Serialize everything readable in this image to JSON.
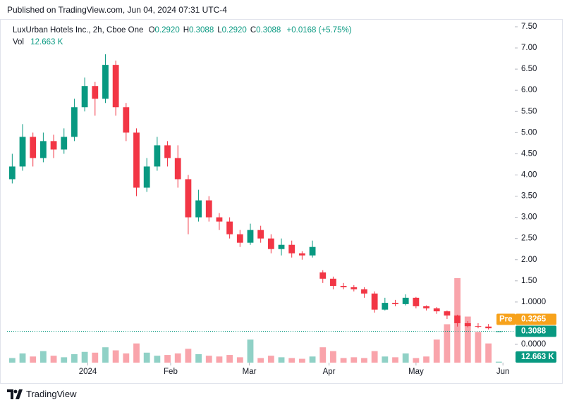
{
  "header": {
    "published": "Published on TradingView.com, Jun 04, 2024 07:31 UTC-4"
  },
  "chart_data": {
    "type": "candlestick",
    "title": "LuxUrban Hotels Inc., 2h, Cboe One",
    "ohlc_legend": [
      {
        "key": "O",
        "value": "0.2920"
      },
      {
        "key": "H",
        "value": "0.3088"
      },
      {
        "key": "L",
        "value": "0.2920"
      },
      {
        "key": "C",
        "value": "0.3088"
      }
    ],
    "change": "+0.0168 (+5.75%)",
    "volume_legend": {
      "label": "Vol",
      "value": "12.663 K"
    },
    "up_color": "#089981",
    "down_color": "#f23645",
    "open": [
      3.9,
      4.2,
      4.9,
      4.4,
      4.8,
      4.6,
      4.9,
      5.6,
      6.1,
      5.8,
      6.6,
      5.6,
      5.0,
      3.7,
      4.2,
      4.7,
      4.4,
      3.9,
      3.0,
      3.4,
      3.0,
      2.9,
      2.6,
      2.4,
      2.7,
      2.5,
      2.25,
      2.35,
      2.15,
      2.1,
      1.7,
      1.55,
      1.38,
      1.35,
      1.3,
      1.2,
      0.82,
      0.98,
      0.95,
      1.1,
      0.9,
      0.85,
      0.78,
      0.68,
      0.5,
      0.43,
      0.42,
      0.292
    ],
    "high": [
      4.5,
      5.2,
      5.0,
      5.0,
      4.95,
      5.1,
      5.8,
      6.3,
      6.2,
      6.85,
      6.7,
      5.7,
      5.1,
      4.4,
      4.9,
      4.8,
      4.7,
      4.0,
      3.65,
      3.5,
      3.1,
      3.0,
      2.7,
      2.85,
      2.8,
      2.6,
      2.5,
      2.45,
      2.2,
      2.45,
      1.75,
      1.6,
      1.45,
      1.4,
      1.35,
      1.25,
      1.1,
      1.05,
      1.18,
      1.12,
      0.92,
      0.88,
      0.8,
      0.7,
      0.55,
      0.5,
      0.48,
      0.3088
    ],
    "low": [
      3.8,
      4.1,
      4.2,
      4.3,
      4.4,
      4.5,
      4.8,
      5.5,
      5.4,
      5.7,
      5.4,
      4.8,
      3.5,
      3.6,
      4.1,
      4.2,
      3.7,
      2.6,
      2.9,
      2.9,
      2.7,
      2.5,
      2.3,
      2.35,
      2.4,
      2.15,
      2.1,
      2.05,
      2.0,
      2.05,
      1.45,
      1.3,
      1.3,
      1.25,
      1.1,
      0.75,
      0.8,
      0.9,
      0.92,
      0.85,
      0.8,
      0.72,
      0.6,
      0.42,
      0.4,
      0.38,
      0.35,
      0.292
    ],
    "close": [
      4.2,
      4.9,
      4.4,
      4.8,
      4.6,
      4.9,
      5.6,
      6.1,
      5.8,
      6.6,
      5.6,
      5.0,
      3.7,
      4.2,
      4.7,
      4.4,
      3.9,
      3.0,
      3.4,
      3.0,
      2.9,
      2.6,
      2.4,
      2.7,
      2.5,
      2.25,
      2.35,
      2.15,
      2.1,
      2.3,
      1.55,
      1.38,
      1.35,
      1.3,
      1.2,
      0.82,
      0.98,
      0.95,
      1.1,
      0.9,
      0.85,
      0.78,
      0.68,
      0.5,
      0.43,
      0.42,
      0.38,
      0.3088
    ],
    "volume": [
      60,
      120,
      80,
      150,
      90,
      70,
      110,
      140,
      130,
      200,
      160,
      120,
      250,
      130,
      90,
      100,
      120,
      180,
      110,
      90,
      80,
      100,
      70,
      300,
      60,
      90,
      70,
      60,
      50,
      80,
      200,
      150,
      60,
      70,
      60,
      150,
      80,
      70,
      120,
      60,
      80,
      300,
      500,
      1100,
      600,
      400,
      250,
      12.663
    ],
    "xlim": [
      -0.5,
      48
    ],
    "xticks": [
      {
        "value": 7.3,
        "label": "2024"
      },
      {
        "value": 15.3,
        "label": "Feb"
      },
      {
        "value": 22.9,
        "label": "Mar"
      },
      {
        "value": 30.6,
        "label": "Apr"
      },
      {
        "value": 39,
        "label": "May"
      },
      {
        "value": 47.4,
        "label": "Jun"
      }
    ],
    "ylim": [
      -0.432,
      7.633
    ],
    "yticks": [
      {
        "value": 7.5,
        "label": "7.50"
      },
      {
        "value": 7,
        "label": "7.00"
      },
      {
        "value": 6.5,
        "label": "6.50"
      },
      {
        "value": 6,
        "label": "6.00"
      },
      {
        "value": 5.5,
        "label": "5.50"
      },
      {
        "value": 5,
        "label": "5.00"
      },
      {
        "value": 4.5,
        "label": "4.50"
      },
      {
        "value": 4,
        "label": "4.00"
      },
      {
        "value": 3.5,
        "label": "3.50"
      },
      {
        "value": 3,
        "label": "3.00"
      },
      {
        "value": 2.5,
        "label": "2.50"
      },
      {
        "value": 2,
        "label": "2.00"
      },
      {
        "value": 1.5,
        "label": "1.50"
      },
      {
        "value": 1,
        "label": "1.0000"
      },
      {
        "value": 0,
        "label": "0.0000"
      }
    ],
    "last_price": {
      "value": 0.3088,
      "label": "0.3088"
    },
    "premarket": {
      "name": "Pre",
      "value": 0.3265,
      "label": "0.3265"
    }
  },
  "footer": {
    "brand": "TradingView"
  }
}
